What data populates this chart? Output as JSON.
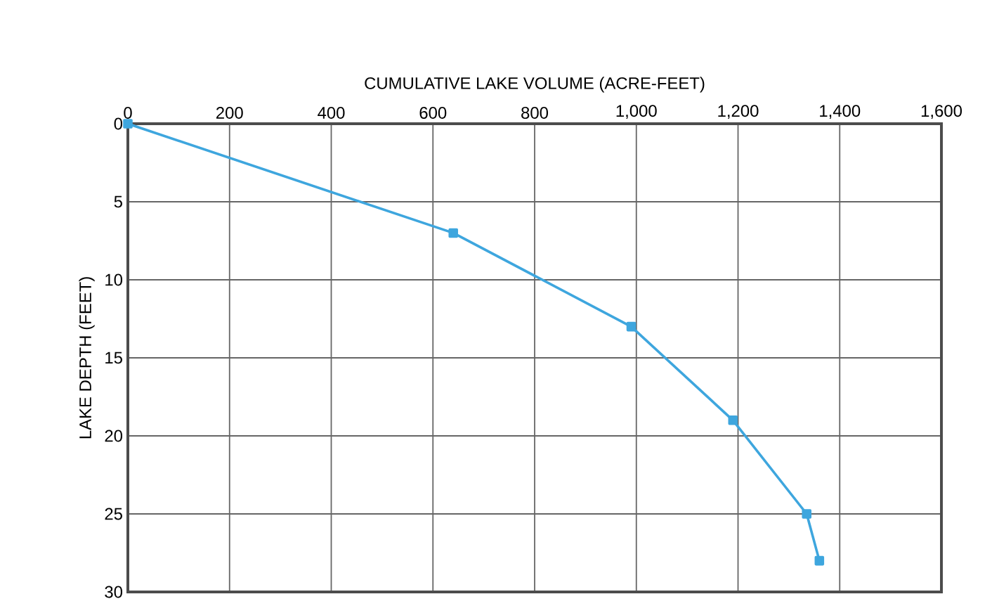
{
  "chart_data": {
    "type": "line",
    "xlabel": "CUMULATIVE LAKE VOLUME (ACRE-FEET)",
    "ylabel": "LAKE DEPTH (FEET)",
    "x": [
      0,
      640,
      990,
      1190,
      1335,
      1360
    ],
    "series": [
      {
        "color": "#3ea6de",
        "values": [
          0,
          7,
          13,
          19,
          25,
          28
        ]
      }
    ],
    "xlim": [
      0,
      1600
    ],
    "ylim": [
      30,
      0
    ],
    "xticks": [
      0,
      200,
      400,
      600,
      800,
      {
        "value": 1000,
        "label": "1,000"
      },
      {
        "value": 1200,
        "label": "1,200"
      },
      {
        "value": 1400,
        "label": "1,400"
      },
      {
        "value": 1600,
        "label": "1,600"
      }
    ],
    "yticks": [
      0,
      5,
      10,
      15,
      20,
      25,
      30
    ],
    "grid": true,
    "marker": "square",
    "line_style": "solid"
  }
}
